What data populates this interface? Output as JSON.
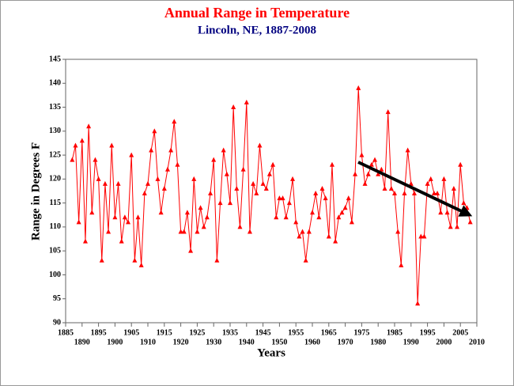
{
  "chart_data": {
    "type": "line",
    "title": "Annual Range in Temperature",
    "subtitle": "Lincoln, NE, 1887-2008",
    "xlabel": "Years",
    "ylabel": "Range in Degrees F",
    "x": [
      1887,
      1888,
      1889,
      1890,
      1891,
      1892,
      1893,
      1894,
      1895,
      1896,
      1897,
      1898,
      1899,
      1900,
      1901,
      1902,
      1903,
      1904,
      1905,
      1906,
      1907,
      1908,
      1909,
      1910,
      1911,
      1912,
      1913,
      1914,
      1915,
      1916,
      1917,
      1918,
      1919,
      1920,
      1921,
      1922,
      1923,
      1924,
      1925,
      1926,
      1927,
      1928,
      1929,
      1930,
      1931,
      1932,
      1933,
      1934,
      1935,
      1936,
      1937,
      1938,
      1939,
      1940,
      1941,
      1942,
      1943,
      1944,
      1945,
      1946,
      1947,
      1948,
      1949,
      1950,
      1951,
      1952,
      1953,
      1954,
      1955,
      1956,
      1957,
      1958,
      1959,
      1960,
      1961,
      1962,
      1963,
      1964,
      1965,
      1966,
      1967,
      1968,
      1969,
      1970,
      1971,
      1972,
      1973,
      1974,
      1975,
      1976,
      1977,
      1978,
      1979,
      1980,
      1981,
      1982,
      1983,
      1984,
      1985,
      1986,
      1987,
      1988,
      1989,
      1990,
      1991,
      1992,
      1993,
      1994,
      1995,
      1996,
      1997,
      1998,
      1999,
      2000,
      2001,
      2002,
      2003,
      2004,
      2005,
      2006,
      2007,
      2008
    ],
    "series": [
      {
        "name": "Annual Range",
        "color": "#ff0000",
        "values": [
          124,
          127,
          111,
          128,
          107,
          131,
          113,
          124,
          120,
          103,
          119,
          109,
          127,
          112,
          119,
          107,
          112,
          111,
          125,
          103,
          112,
          102,
          117,
          119,
          126,
          130,
          120,
          113,
          118,
          122,
          126,
          132,
          123,
          109,
          109,
          113,
          105,
          120,
          109,
          114,
          110,
          112,
          117,
          124,
          103,
          115,
          126,
          121,
          115,
          135,
          118,
          110,
          122,
          136,
          109,
          119,
          117,
          127,
          119,
          118,
          121,
          123,
          112,
          116,
          116,
          112,
          115,
          120,
          111,
          108,
          109,
          103,
          109,
          113,
          117,
          112,
          118,
          116,
          108,
          123,
          107,
          112,
          113,
          114,
          116,
          111,
          121,
          139,
          125,
          119,
          121,
          123,
          124,
          121,
          122,
          118,
          134,
          118,
          117,
          109,
          102,
          117,
          126,
          119,
          117,
          94,
          108,
          108,
          119,
          120,
          117,
          117,
          113,
          120,
          113,
          110,
          118,
          110,
          123,
          115,
          114,
          111
        ]
      }
    ],
    "xlim": [
      1885,
      2010
    ],
    "xticks": [
      1885,
      1890,
      1895,
      1900,
      1905,
      1910,
      1915,
      1920,
      1925,
      1930,
      1935,
      1940,
      1945,
      1950,
      1955,
      1960,
      1965,
      1970,
      1975,
      1980,
      1985,
      1990,
      1995,
      2000,
      2005,
      2010
    ],
    "ylim": [
      90,
      145
    ],
    "yticks": [
      90,
      95,
      100,
      105,
      110,
      115,
      120,
      125,
      130,
      135,
      140,
      145
    ]
  }
}
